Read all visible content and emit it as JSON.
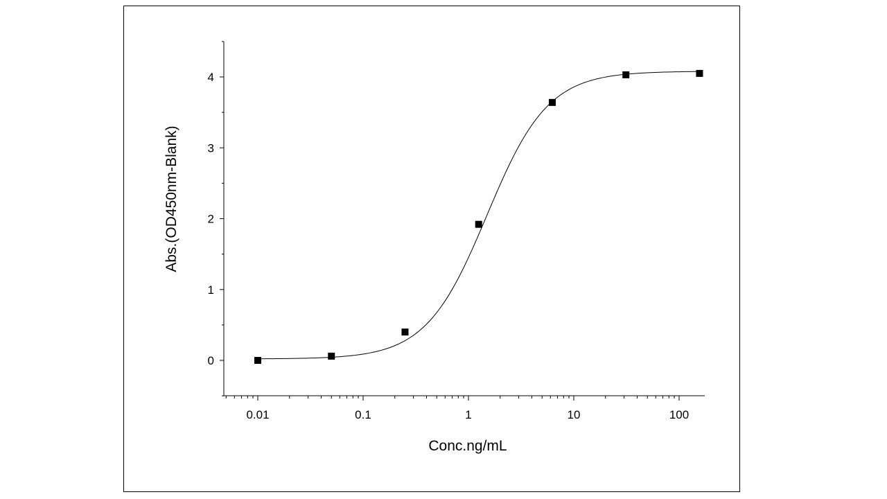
{
  "chart_data": {
    "type": "scatter",
    "title": "",
    "xlabel": "Conc.ng/mL",
    "ylabel": "Abs.(OD450nm-Blank)",
    "x_scale": "log",
    "xlim": [
      0.006,
      170
    ],
    "ylim": [
      -0.5,
      4.5
    ],
    "x_ticks": [
      {
        "value": 0.01,
        "label": "0.01"
      },
      {
        "value": 0.1,
        "label": "0.1"
      },
      {
        "value": 1,
        "label": "1"
      },
      {
        "value": 10,
        "label": "10"
      },
      {
        "value": 100,
        "label": "100"
      }
    ],
    "y_ticks": [
      {
        "value": 0,
        "label": "0"
      },
      {
        "value": 1,
        "label": "1"
      },
      {
        "value": 2,
        "label": "2"
      },
      {
        "value": 3,
        "label": "3"
      },
      {
        "value": 4,
        "label": "4"
      }
    ],
    "grid": false,
    "legend": false,
    "series": [
      {
        "x": [
          0.01,
          0.05,
          0.25,
          1.25,
          6.25,
          31.25,
          156.25
        ],
        "y": [
          0.0,
          0.06,
          0.4,
          1.92,
          3.64,
          4.03,
          4.05
        ]
      }
    ],
    "fit_curve": {
      "model": "4PL",
      "bottom": 0.02,
      "top": 4.08,
      "ec50": 1.5,
      "hill": 1.5
    },
    "colors": {
      "marker": "#000000",
      "line": "#000000"
    }
  }
}
